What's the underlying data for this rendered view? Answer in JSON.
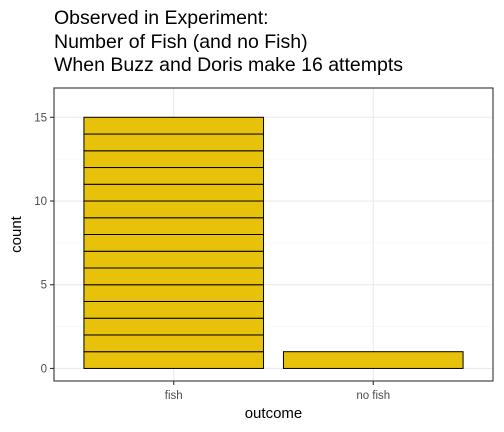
{
  "chart_data": {
    "type": "bar",
    "title_lines": [
      "Observed in Experiment:",
      "Number of Fish (and no Fish)",
      "When Buzz and Doris make 16 attempts"
    ],
    "xlabel": "outcome",
    "ylabel": "count",
    "categories": [
      "fish",
      "no fish"
    ],
    "values": [
      15,
      1
    ],
    "ylim": [
      -0.75,
      16.75
    ],
    "yticks": [
      0,
      5,
      10,
      15
    ],
    "grid": true,
    "stacked_units": true,
    "colors": {
      "bar_fill": "#E8C10A",
      "bar_stroke": "#000000",
      "panel_border": "#333333",
      "grid_major": "#EBEBEB"
    }
  }
}
